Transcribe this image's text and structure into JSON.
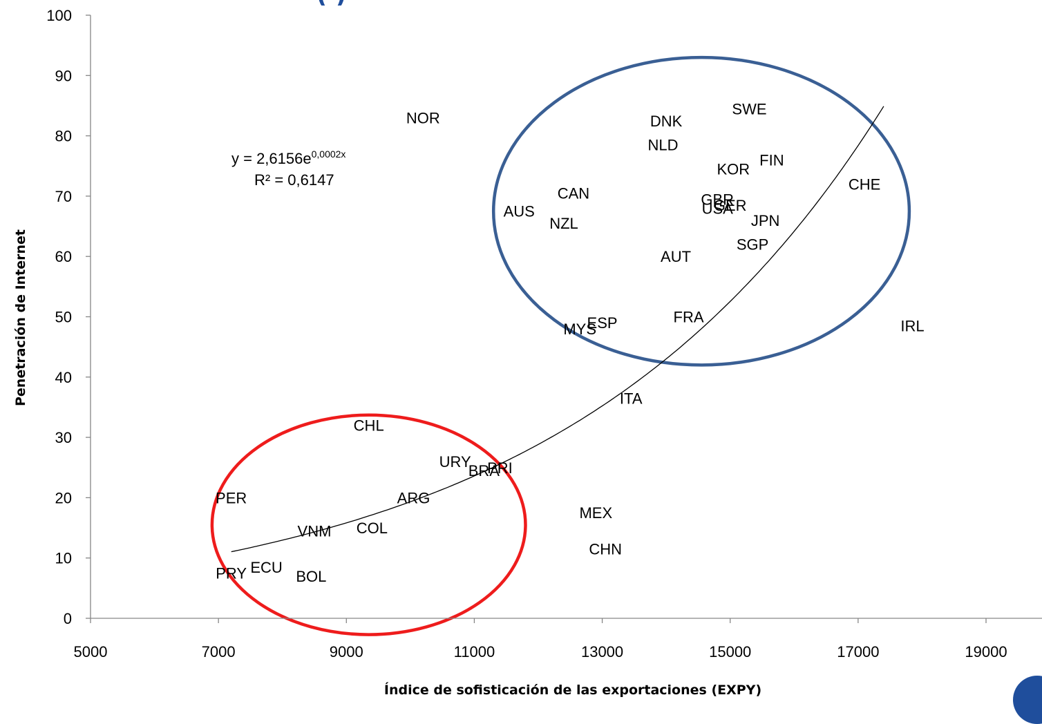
{
  "chart_data": {
    "type": "scatter",
    "title_fragment": "(          )",
    "xlabel": "Índice de sofisticación de las exportaciones (EXPY)",
    "ylabel": "Penetración de Internet",
    "xlim": [
      5000,
      19000
    ],
    "ylim": [
      0,
      100
    ],
    "x_ticks": [
      5000,
      7000,
      9000,
      11000,
      13000,
      15000,
      17000,
      19000
    ],
    "y_ticks": [
      0,
      10,
      20,
      30,
      40,
      50,
      60,
      70,
      80,
      90,
      100
    ],
    "grid": false,
    "trendline": {
      "type": "exponential",
      "a": 2.6156,
      "b": 0.0002,
      "equation_text": "y = 2,6156e",
      "equation_exponent": "0,0002x",
      "r2_text": "R² = 0,6147",
      "x_range": [
        7200,
        17400
      ]
    },
    "points": [
      {
        "label": "NOR",
        "x": 10200,
        "y": 83
      },
      {
        "label": "DNK",
        "x": 14000,
        "y": 82.5
      },
      {
        "label": "SWE",
        "x": 15300,
        "y": 84.5
      },
      {
        "label": "NLD",
        "x": 13950,
        "y": 78.5
      },
      {
        "label": "FIN",
        "x": 15650,
        "y": 76
      },
      {
        "label": "KOR",
        "x": 15050,
        "y": 74.5
      },
      {
        "label": "CHE",
        "x": 17100,
        "y": 72
      },
      {
        "label": "CAN",
        "x": 12550,
        "y": 70.5
      },
      {
        "label": "GBR",
        "x": 14800,
        "y": 69.5
      },
      {
        "label": "USA",
        "x": 14800,
        "y": 68
      },
      {
        "label": "GER",
        "x": 15000,
        "y": 68.5
      },
      {
        "label": "AUS",
        "x": 11700,
        "y": 67.5
      },
      {
        "label": "NZL",
        "x": 12400,
        "y": 65.5
      },
      {
        "label": "JPN",
        "x": 15550,
        "y": 66
      },
      {
        "label": "SGP",
        "x": 15350,
        "y": 62
      },
      {
        "label": "AUT",
        "x": 14150,
        "y": 60
      },
      {
        "label": "FRA",
        "x": 14350,
        "y": 50
      },
      {
        "label": "ESP",
        "x": 13000,
        "y": 49
      },
      {
        "label": "MYS",
        "x": 12650,
        "y": 48
      },
      {
        "label": "IRL",
        "x": 17850,
        "y": 48.5
      },
      {
        "label": "ITA",
        "x": 13450,
        "y": 36.5
      },
      {
        "label": "CHL",
        "x": 9350,
        "y": 32
      },
      {
        "label": "URY",
        "x": 10700,
        "y": 26
      },
      {
        "label": "BRA",
        "x": 11150,
        "y": 24.5
      },
      {
        "label": "PRI",
        "x": 11400,
        "y": 25
      },
      {
        "label": "PER",
        "x": 7200,
        "y": 20
      },
      {
        "label": "ARG",
        "x": 10050,
        "y": 20
      },
      {
        "label": "MEX",
        "x": 12900,
        "y": 17.5
      },
      {
        "label": "VNM",
        "x": 8500,
        "y": 14.5
      },
      {
        "label": "COL",
        "x": 9400,
        "y": 15
      },
      {
        "label": "CHN",
        "x": 13050,
        "y": 11.5
      },
      {
        "label": "PRY",
        "x": 7200,
        "y": 7.5
      },
      {
        "label": "ECU",
        "x": 7750,
        "y": 8.5
      },
      {
        "label": "BOL",
        "x": 8450,
        "y": 7
      }
    ],
    "annotations": [
      {
        "shape": "ellipse",
        "color": "#3a5f94",
        "cx": 14550,
        "cy": 67.5,
        "rx": 3250,
        "ry": 25.5
      },
      {
        "shape": "ellipse",
        "color": "#ee1c1c",
        "cx": 9350,
        "cy": 15.5,
        "rx": 2450,
        "ry": 18.2
      }
    ]
  }
}
